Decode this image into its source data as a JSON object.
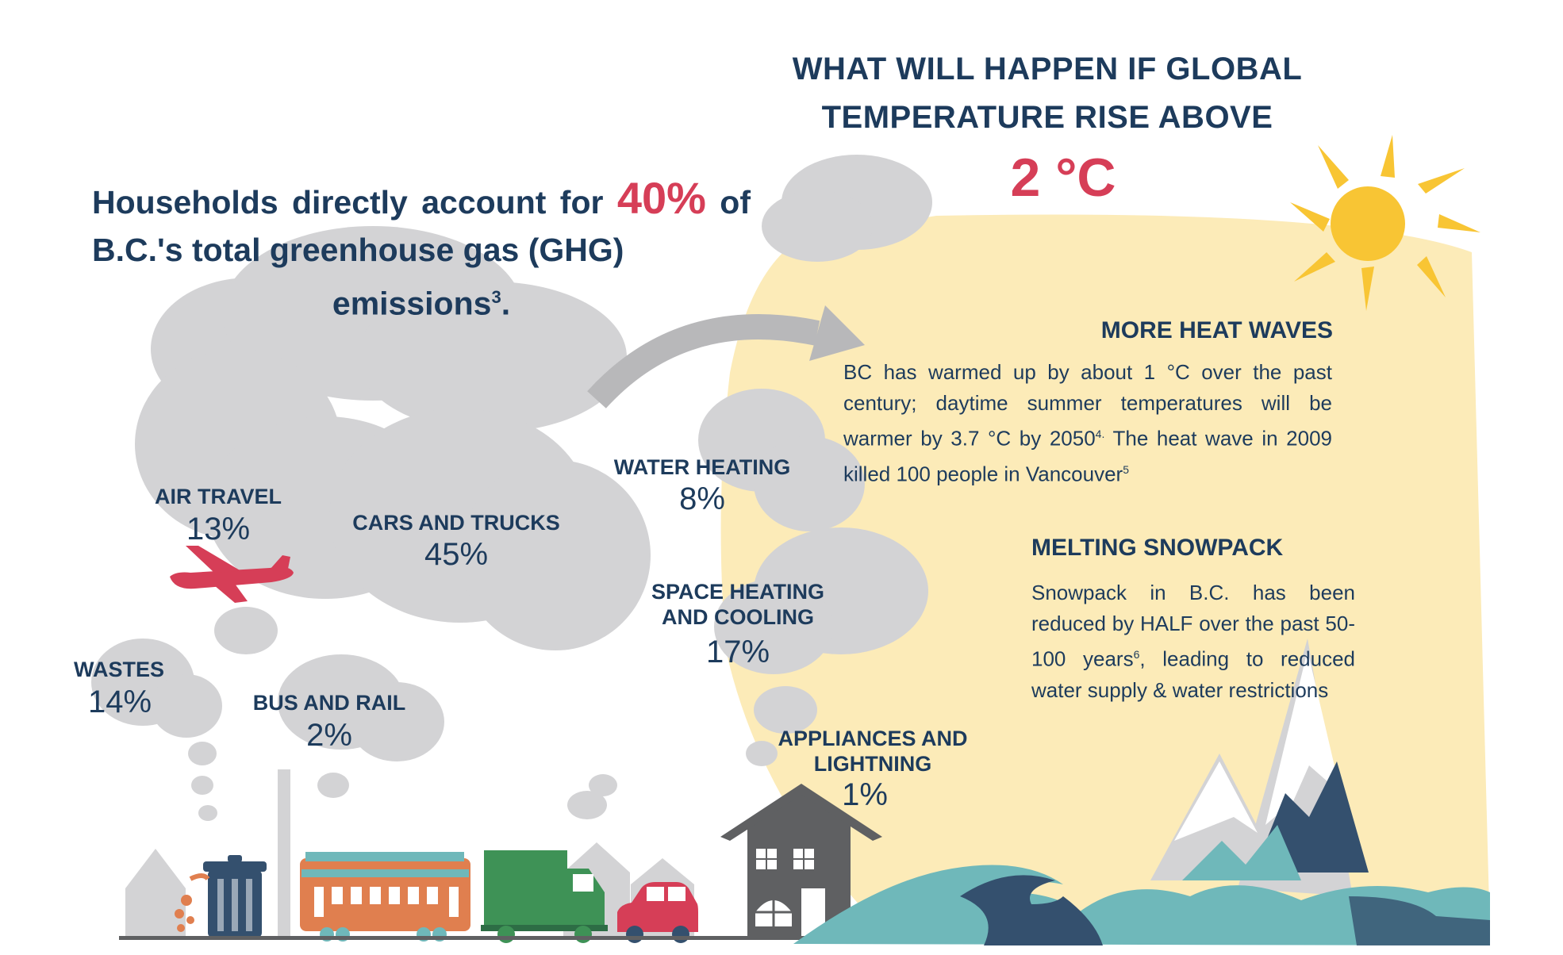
{
  "heading": {
    "line1": "WHAT WILL HAPPEN IF GLOBAL",
    "line2": "TEMPERATURE RISE ABOVE",
    "temperature": "2 °C"
  },
  "households": {
    "text_before": "Households directly account for ",
    "percent": "40%",
    "text_after": " of B.C.'s total greenhouse gas (GHG)",
    "text_last": "emissions",
    "footnote": "3",
    "trailing": "."
  },
  "categories": [
    {
      "label": "AIR TRAVEL",
      "value": "13%"
    },
    {
      "label": "CARS AND TRUCKS",
      "value": "45%"
    },
    {
      "label": "WATER HEATING",
      "value": "8%"
    },
    {
      "label": "SPACE HEATING AND COOLING",
      "value": "17%"
    },
    {
      "label": "WASTES",
      "value": "14%"
    },
    {
      "label": "BUS AND RAIL",
      "value": "2%"
    },
    {
      "label": "APPLIANCES AND LIGHTNING",
      "value": "1%"
    }
  ],
  "heat_waves": {
    "title": "MORE HEAT WAVES",
    "text_part1": "BC has warmed up by about 1 °C over the past century; daytime summer temperatures will be warmer by 3.7 °C by 2050",
    "footnote1": "4.",
    "text_part2": " The heat wave in 2009 killed 100 people in Vancouver",
    "footnote2": "5"
  },
  "snowpack": {
    "title": "MELTING SNOWPACK",
    "text_part1": "Snowpack in B.C. has been reduced by HALF over the past 50-100 years",
    "footnote": "6",
    "text_part2": ", leading to reduced water supply & water restrictions"
  },
  "colors": {
    "navy": "#1d3b5c",
    "accent_red": "#d63e57",
    "smoke_gray": "#d3d3d5",
    "sun_yellow": "#f8c534",
    "warm_glow": "#fcebb8",
    "water_teal": "#6fb8ba",
    "mountain_navy": "#34506e"
  },
  "icons": [
    "sun-icon",
    "airplane-icon",
    "trash-can-icon",
    "train-icon",
    "truck-icon",
    "car-icon",
    "house-icon",
    "arrow-icon",
    "mountain-icon",
    "wave-icon",
    "smokestack-icon"
  ]
}
